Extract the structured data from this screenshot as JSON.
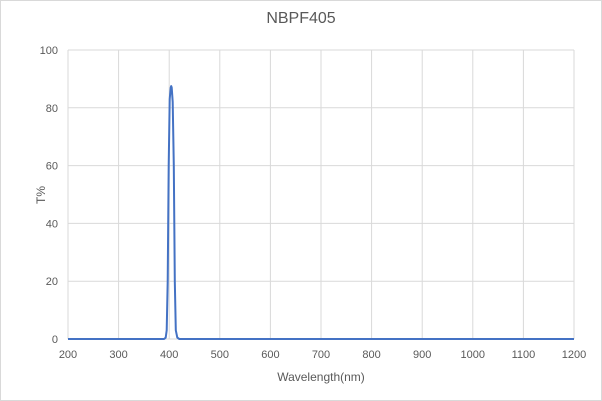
{
  "chart_data": {
    "type": "line",
    "title": "NBPF405",
    "xlabel": "Wavelength(nm)",
    "ylabel": "T%",
    "xlim": [
      200,
      1200
    ],
    "ylim": [
      0,
      100
    ],
    "x_ticks": [
      200,
      300,
      400,
      500,
      600,
      700,
      800,
      900,
      1000,
      1100,
      1200
    ],
    "y_ticks": [
      0,
      20,
      40,
      60,
      80,
      100
    ],
    "grid": true,
    "legend": false,
    "series": [
      {
        "name": "NBPF405",
        "color": "#4472c4",
        "x": [
          200,
          300,
          390,
          393,
          395,
          397,
          399,
          401,
          403,
          404,
          405,
          407,
          409,
          411,
          413,
          416,
          420,
          500,
          600,
          700,
          800,
          900,
          1000,
          1100,
          1200
        ],
        "y": [
          0,
          0,
          0,
          0.5,
          3,
          20,
          60,
          83,
          87,
          87.5,
          87,
          82,
          60,
          20,
          3,
          0.5,
          0,
          0,
          0,
          0,
          0,
          0,
          0,
          0,
          0
        ]
      }
    ]
  }
}
